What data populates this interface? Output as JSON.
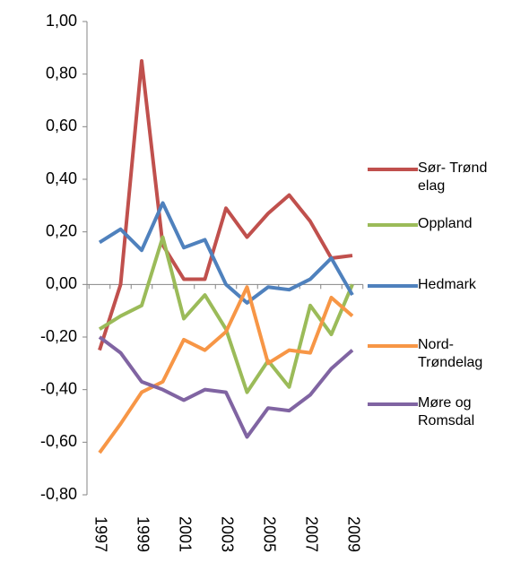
{
  "chart_data": {
    "type": "line",
    "categories": [
      "1997",
      null,
      "1999",
      null,
      "2001",
      null,
      "2003",
      null,
      "2005",
      null,
      "2007",
      null,
      "2009"
    ],
    "series": [
      {
        "name": "Sør- Trøndelag",
        "color": "#c0504d",
        "values": [
          -0.25,
          0.0,
          0.85,
          0.15,
          0.02,
          0.02,
          0.29,
          0.18,
          0.27,
          0.34,
          0.24,
          0.1,
          0.11
        ]
      },
      {
        "name": "Oppland",
        "color": "#9bbb59",
        "values": [
          -0.17,
          -0.12,
          -0.08,
          0.18,
          -0.13,
          -0.04,
          -0.17,
          -0.41,
          -0.29,
          -0.39,
          -0.08,
          -0.19,
          0.0
        ]
      },
      {
        "name": "Hedmark",
        "color": "#4f81bd",
        "values": [
          0.16,
          0.21,
          0.13,
          0.31,
          0.14,
          0.17,
          0.0,
          -0.07,
          -0.01,
          -0.02,
          0.02,
          0.1,
          -0.04
        ]
      },
      {
        "name": "Nord-Trøndelag",
        "color": "#f79646",
        "values": [
          -0.64,
          -0.53,
          -0.41,
          -0.37,
          -0.21,
          -0.25,
          -0.18,
          -0.01,
          -0.3,
          -0.25,
          -0.26,
          -0.05,
          -0.12
        ]
      },
      {
        "name": "Møre og Romsdal",
        "color": "#8064a2",
        "values": [
          -0.2,
          -0.26,
          -0.37,
          -0.4,
          -0.44,
          -0.4,
          -0.41,
          -0.58,
          -0.47,
          -0.48,
          -0.42,
          -0.32,
          -0.25
        ]
      }
    ],
    "ylim": [
      -0.8,
      1.0
    ],
    "yticks": [
      {
        "value": -0.8,
        "label": "-0,80"
      },
      {
        "value": -0.6,
        "label": "-0,60"
      },
      {
        "value": -0.4,
        "label": "-0,40"
      },
      {
        "value": -0.2,
        "label": "-0,20"
      },
      {
        "value": 0,
        "label": "0,00"
      },
      {
        "value": 0.2,
        "label": "0,20"
      },
      {
        "value": 0.4,
        "label": "0,40"
      },
      {
        "value": 0.6,
        "label": "0,60"
      },
      {
        "value": 0.8,
        "label": "0,80"
      },
      {
        "value": 1.0,
        "label": "1,00"
      }
    ],
    "legend": "right"
  }
}
